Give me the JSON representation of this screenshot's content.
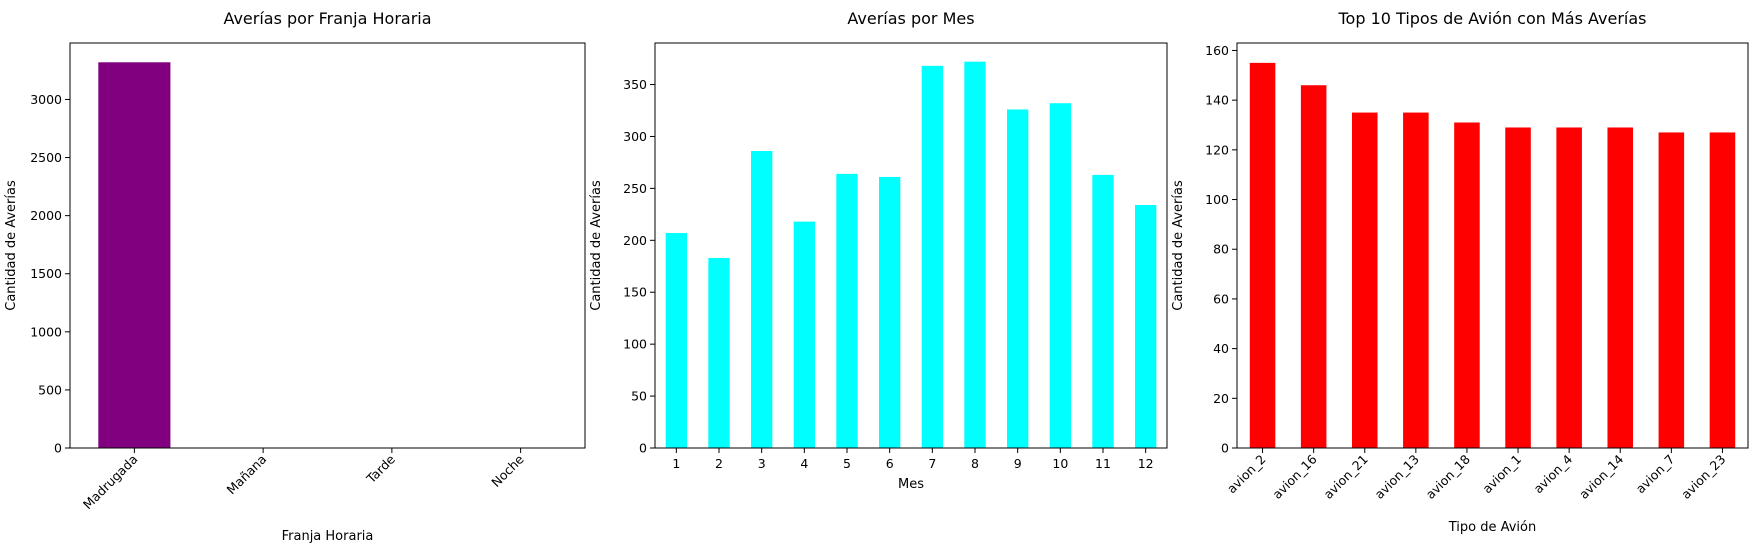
{
  "chart_data": [
    {
      "type": "bar",
      "title": "Averías por Franja Horaria",
      "xlabel": "Franja Horaria",
      "ylabel": "Cantidad de Averías",
      "categories": [
        "Madrugada",
        "Mañana",
        "Tarde",
        "Noche"
      ],
      "values": [
        3320,
        0,
        0,
        0
      ],
      "ylim": [
        0,
        3486
      ],
      "yticks": [
        0,
        500,
        1000,
        1500,
        2000,
        2500,
        3000
      ],
      "color": "#800080",
      "grid": false
    },
    {
      "type": "bar",
      "title": "Averías por Mes",
      "xlabel": "Mes",
      "ylabel": "Cantidad de Averías",
      "categories": [
        "1",
        "2",
        "3",
        "4",
        "5",
        "6",
        "7",
        "8",
        "9",
        "10",
        "11",
        "12"
      ],
      "values": [
        207,
        183,
        286,
        218,
        264,
        261,
        368,
        372,
        326,
        332,
        263,
        234
      ],
      "ylim": [
        0,
        390
      ],
      "yticks": [
        0,
        50,
        100,
        150,
        200,
        250,
        300,
        350
      ],
      "color": "#00ffff",
      "grid": false
    },
    {
      "type": "bar",
      "title": "Top 10 Tipos de Avión con Más Averías",
      "xlabel": "Tipo de Avión",
      "ylabel": "Cantidad de Averías",
      "categories": [
        "avion_2",
        "avion_16",
        "avion_21",
        "avion_13",
        "avion_18",
        "avion_1",
        "avion_4",
        "avion_14",
        "avion_7",
        "avion_23"
      ],
      "values": [
        155,
        146,
        135,
        135,
        131,
        129,
        129,
        129,
        127,
        127
      ],
      "ylim": [
        0,
        163
      ],
      "yticks": [
        0,
        20,
        40,
        60,
        80,
        100,
        120,
        140,
        160
      ],
      "color": "#ff0000",
      "grid": false
    }
  ]
}
